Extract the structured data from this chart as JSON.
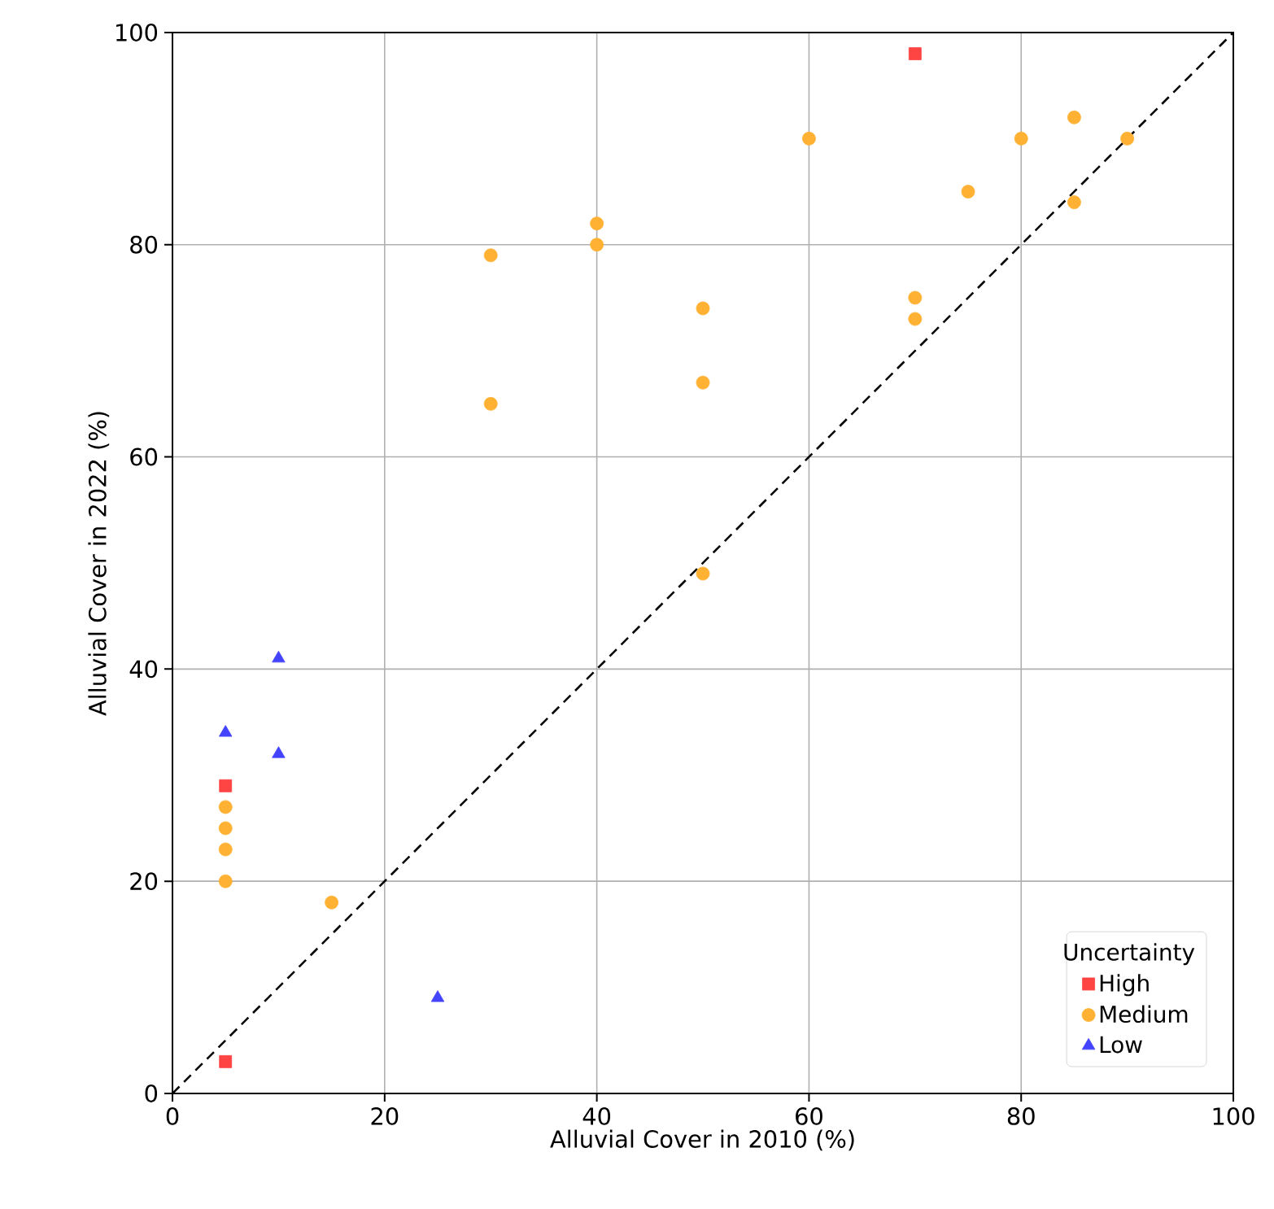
{
  "chart_data": {
    "type": "scatter",
    "xlabel": "Alluvial Cover in 2010 (%)",
    "ylabel": "Alluvial Cover in 2022 (%)",
    "legend_title": "Uncertainty",
    "legend": "bottom right",
    "grid": true,
    "xlim": [
      0,
      100
    ],
    "ylim": [
      0,
      100
    ],
    "xticks": [
      0,
      20,
      40,
      60,
      80,
      100
    ],
    "yticks": [
      0,
      20,
      40,
      60,
      80,
      100
    ],
    "series": [
      {
        "name": "High",
        "color": "#ff4444",
        "marker": "square",
        "x": [
          70,
          5,
          5
        ],
        "values": [
          98,
          29,
          3
        ]
      },
      {
        "name": "Medium",
        "color": "#ffb133",
        "marker": "circle",
        "x": [
          5,
          5,
          5,
          5,
          15,
          30,
          30,
          40,
          40,
          50,
          50,
          50,
          60,
          70,
          70,
          75,
          80,
          85,
          85,
          90
        ],
        "values": [
          27,
          25,
          23,
          20,
          18,
          79,
          65,
          82,
          80,
          74,
          67,
          49,
          90,
          75,
          73,
          85,
          90,
          92,
          84,
          90
        ]
      },
      {
        "name": "Low",
        "color": "#4444ff",
        "marker": "triangle",
        "x": [
          5,
          10,
          10,
          25
        ],
        "values": [
          34,
          41,
          32,
          9
        ]
      },
      {
        "type": "line",
        "color": "#000000",
        "line_style": "dashed",
        "marker": "none",
        "x": [
          0,
          100
        ],
        "values": [
          0,
          100
        ]
      }
    ]
  }
}
